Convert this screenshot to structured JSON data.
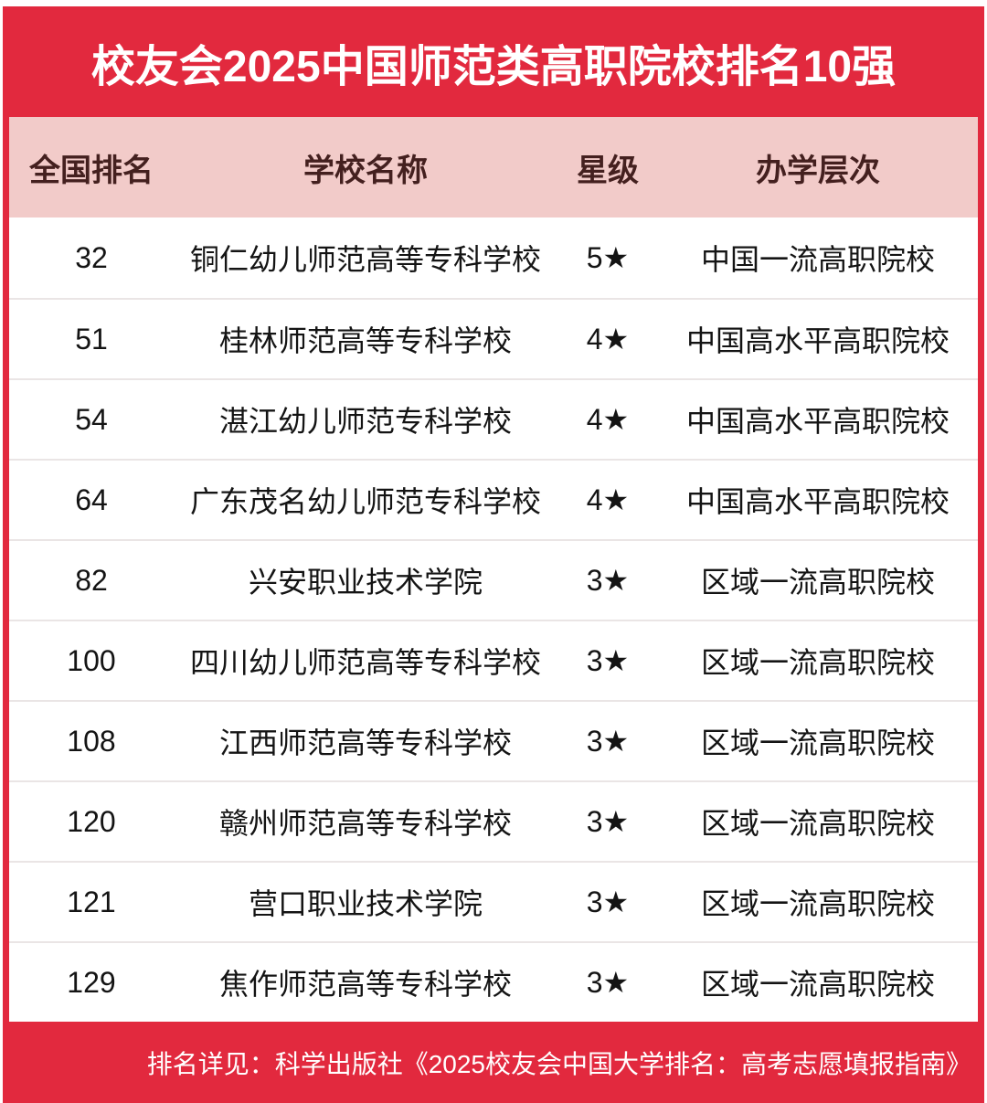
{
  "chart_data": {
    "type": "table",
    "title": "校友会2025中国师范类高职院校排名10强",
    "columns": [
      "全国排名",
      "学校名称",
      "星级",
      "办学层次"
    ],
    "rows": [
      [
        "32",
        "铜仁幼儿师范高等专科学校",
        "5★",
        "中国一流高职院校"
      ],
      [
        "51",
        "桂林师范高等专科学校",
        "4★",
        "中国高水平高职院校"
      ],
      [
        "54",
        "湛江幼儿师范专科学校",
        "4★",
        "中国高水平高职院校"
      ],
      [
        "64",
        "广东茂名幼儿师范专科学校",
        "4★",
        "中国高水平高职院校"
      ],
      [
        "82",
        "兴安职业技术学院",
        "3★",
        "区域一流高职院校"
      ],
      [
        "100",
        "四川幼儿师范高等专科学校",
        "3★",
        "区域一流高职院校"
      ],
      [
        "108",
        "江西师范高等专科学校",
        "3★",
        "区域一流高职院校"
      ],
      [
        "120",
        "赣州师范高等专科学校",
        "3★",
        "区域一流高职院校"
      ],
      [
        "121",
        "营口职业技术学院",
        "3★",
        "区域一流高职院校"
      ],
      [
        "129",
        "焦作师范高等专科学校",
        "3★",
        "区域一流高职院校"
      ]
    ],
    "footnote": "排名详见：科学出版社《2025校友会中国大学排名：高考志愿填报指南》"
  },
  "colors": {
    "accent_red": "#E2293E",
    "header_pink": "#F2CBC9",
    "header_text": "#44201F",
    "body_text": "#141414",
    "separator": "#EAE5E5",
    "title_text": "#FFFFFF"
  }
}
